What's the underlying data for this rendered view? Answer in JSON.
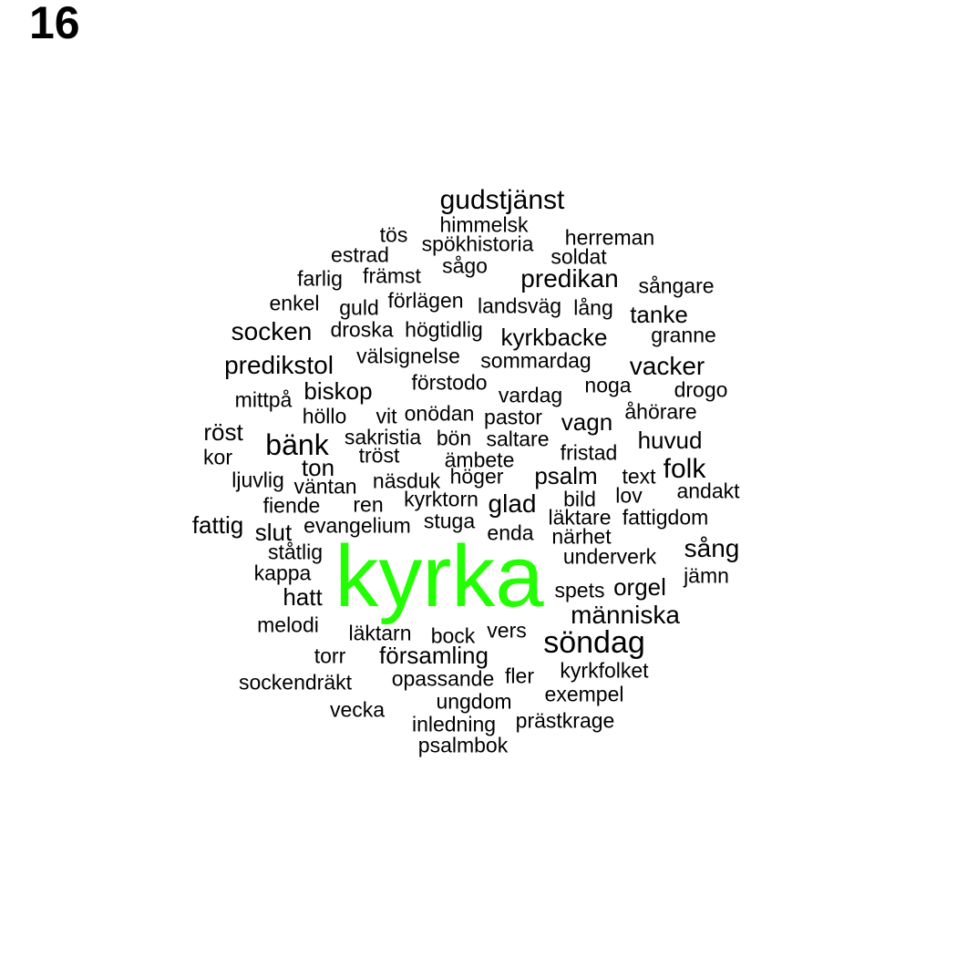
{
  "title": "16",
  "highlight_color": "#22ff00",
  "text_color": "#000000",
  "words": [
    "kyrka",
    "söndag",
    "gudstjänst",
    "bänk",
    "folk",
    "predikan",
    "socken",
    "predikstol",
    "vacker",
    "människa",
    "sång",
    "himmelsk",
    "tös",
    "spökhistoria",
    "herreman",
    "estrad",
    "soldat",
    "sågo",
    "farlig",
    "främst",
    "sångare",
    "enkel",
    "guld",
    "förlägen",
    "landsväg",
    "lång",
    "tanke",
    "droska",
    "högtidlig",
    "kyrkbacke",
    "granne",
    "välsignelse",
    "sommardag",
    "förstodo",
    "noga",
    "drogo",
    "biskop",
    "vardag",
    "mittpå",
    "åhörare",
    "höllo",
    "vit",
    "onödan",
    "pastor",
    "vagn",
    "röst",
    "sakristia",
    "bön",
    "saltare",
    "huvud",
    "kor",
    "tröst",
    "ämbete",
    "fristad",
    "ton",
    "psalm",
    "text",
    "ljuvlig",
    "väntan",
    "näsduk",
    "höger",
    "andakt",
    "fiende",
    "ren",
    "kyrktorn",
    "glad",
    "bild",
    "lov",
    "fattig",
    "slut",
    "evangelium",
    "stuga",
    "enda",
    "läktare",
    "fattigdom",
    "närhet",
    "ståtlig",
    "underverk",
    "kappa",
    "jämn",
    "spets",
    "orgel",
    "hatt",
    "melodi",
    "läktarn",
    "bock",
    "vers",
    "torr",
    "församling",
    "sockendräkt",
    "opassande",
    "fler",
    "kyrkfolket",
    "exempel",
    "vecka",
    "ungdom",
    "inledning",
    "prästkrage",
    "psalmbok"
  ]
}
